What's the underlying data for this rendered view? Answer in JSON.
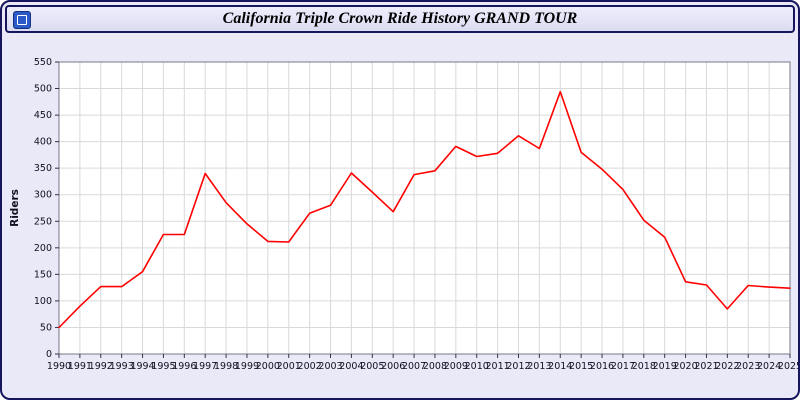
{
  "window": {
    "title": "California Triple Crown Ride History GRAND TOUR",
    "icon": "app-icon"
  },
  "chart_data": {
    "type": "line",
    "title": "California Triple Crown Ride History GRAND TOUR",
    "xlabel": "",
    "ylabel": "Riders",
    "ylim": [
      0,
      550
    ],
    "ytick_step": 50,
    "grid": true,
    "legend_position": "none",
    "line_color": "#ff0000",
    "plot_background": "#ffffff",
    "outer_background": "#e9e9f7",
    "grid_color": "#d9d9d9",
    "x": [
      1990,
      1991,
      1992,
      1993,
      1994,
      1995,
      1996,
      1997,
      1998,
      1999,
      2000,
      2001,
      2002,
      2003,
      2004,
      2005,
      2006,
      2007,
      2008,
      2009,
      2010,
      2011,
      2012,
      2013,
      2014,
      2015,
      2016,
      2017,
      2018,
      2019,
      2020,
      2021,
      2022,
      2023,
      2024,
      2025
    ],
    "values": [
      50,
      90,
      127,
      127,
      155,
      225,
      225,
      340,
      285,
      245,
      212,
      211,
      265,
      280,
      341,
      305,
      268,
      338,
      345,
      391,
      372,
      378,
      411,
      387,
      494,
      380,
      348,
      310,
      252,
      220,
      136,
      130,
      85,
      129,
      126,
      124
    ]
  }
}
